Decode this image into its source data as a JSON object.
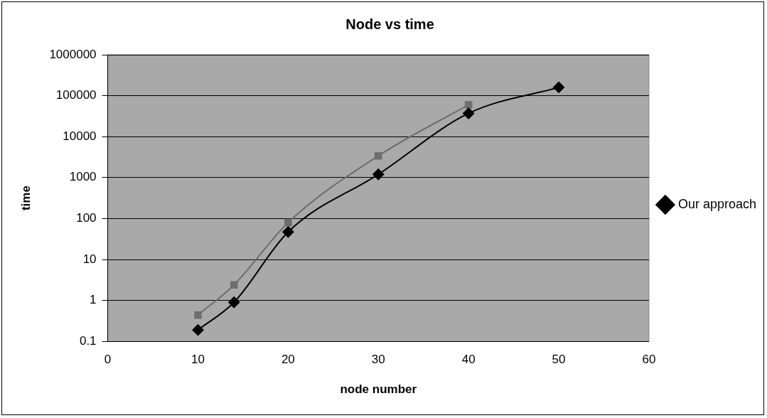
{
  "chart_data": {
    "type": "line",
    "title": "Node vs time",
    "xlabel": "node number",
    "ylabel": "time",
    "log": "y",
    "grid": "y",
    "legend": "right",
    "line_style": "solid",
    "xlim": [
      0,
      60
    ],
    "xticks": [
      0,
      10,
      20,
      30,
      40,
      50,
      60
    ],
    "ylim": [
      0.1,
      1000000
    ],
    "yticks": [
      0.1,
      1,
      10,
      100,
      1000,
      10000,
      100000,
      1000000
    ],
    "series": [
      {
        "name": "Our approach",
        "color": "#000000",
        "marker": "diamond",
        "x": [
          10,
          14,
          20,
          30,
          40,
          50
        ],
        "values": [
          0.19,
          0.9,
          47,
          1200,
          37000,
          160000
        ]
      },
      {
        "color": "#6e6e6e",
        "marker": "square",
        "x": [
          10,
          14,
          20,
          30,
          40
        ],
        "values": [
          0.44,
          2.4,
          80,
          3400,
          60000
        ]
      }
    ]
  }
}
